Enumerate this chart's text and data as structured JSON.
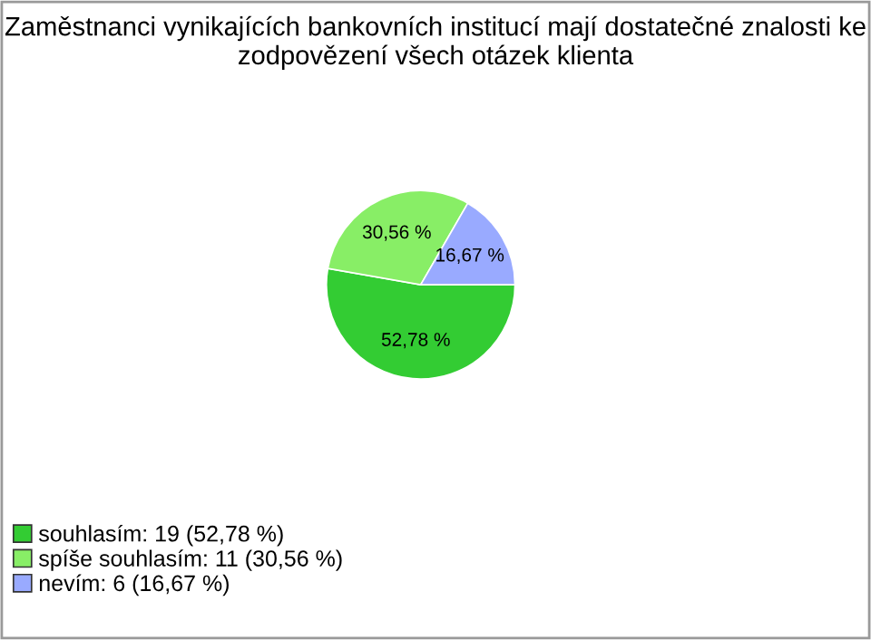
{
  "chart_data": {
    "type": "pie",
    "title": "Zaměstnanci vynikajících bankovních institucí mají dostatečné znalosti ke zodpovězení všech otázek klienta",
    "categories": [
      "souhlasím: 19 (52,78 %)",
      "spíše souhlasím: 11 (30,56 %)",
      "nevím: 6 (16,67 %)"
    ],
    "values": [
      52.78,
      30.56,
      16.67
    ],
    "colors": [
      "#33cc33",
      "#88ee66",
      "#99aaff"
    ],
    "value_labels": [
      "52,78 %",
      "30,56 %",
      "16,67 %"
    ],
    "legend": "bottom left"
  }
}
